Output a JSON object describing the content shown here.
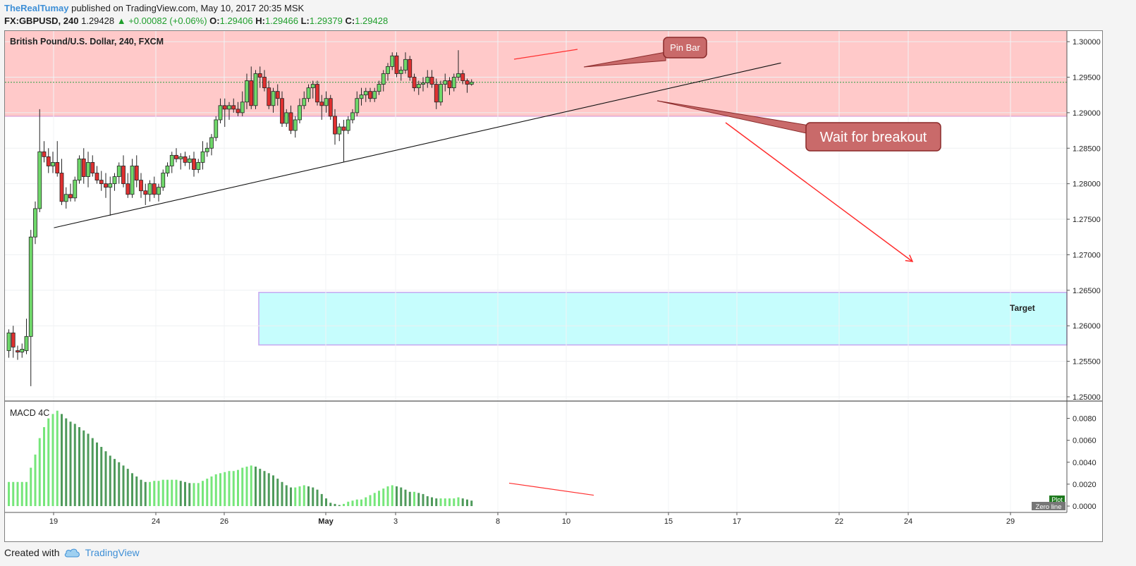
{
  "header": {
    "author": "TheRealTumay",
    "published": "published on TradingView.com, May 10, 2017 20:35 MSK"
  },
  "quote": {
    "symbol": "FX:GBPUSD, 240",
    "last": "1.29428",
    "change": "▲ +0.00082 (+0.06%)",
    "o_label": "O:",
    "o": "1.29406",
    "h_label": "H:",
    "h": "1.29466",
    "l_label": "L:",
    "l": "1.29379",
    "c_label": "C:",
    "c": "1.29428"
  },
  "footer": {
    "created": "Created with",
    "brand": "TradingView"
  },
  "colors": {
    "up": "#6fd86a",
    "down": "#e03030",
    "resistance_zone": "#ffc9c9",
    "target_zone": "#c6fdfd",
    "annotation": "#c96a6a",
    "macd_light": "#76e67a",
    "macd_dark": "#4f9a5b"
  },
  "chart_data": {
    "type": "candlestick",
    "title": "British Pound/U.S. Dollar, 240, FXCM",
    "y_ticks": [
      "1.30000",
      "1.29500",
      "1.29000",
      "1.28500",
      "1.28000",
      "1.27500",
      "1.27000",
      "1.26500",
      "1.26000",
      "1.25500",
      "1.25000"
    ],
    "ylim": [
      1.2495,
      1.3015
    ],
    "x_ticks": [
      "19",
      "24",
      "26",
      "May",
      "3",
      "8",
      "10",
      "15",
      "17",
      "22",
      "24",
      "29"
    ],
    "ohlc": [
      [
        1.2565,
        1.2595,
        1.2555,
        1.259
      ],
      [
        1.259,
        1.26,
        1.2555,
        1.257
      ],
      [
        1.2565,
        1.2572,
        1.2552,
        1.2563
      ],
      [
        1.2563,
        1.2575,
        1.2555,
        1.2567
      ],
      [
        1.2565,
        1.261,
        1.256,
        1.2585
      ],
      [
        1.2585,
        1.2735,
        1.2515,
        1.2725
      ],
      [
        1.2725,
        1.2775,
        1.2715,
        1.2765
      ],
      [
        1.2765,
        1.2905,
        1.276,
        1.2845
      ],
      [
        1.2845,
        1.286,
        1.283,
        1.2838
      ],
      [
        1.2838,
        1.285,
        1.2815,
        1.2825
      ],
      [
        1.2825,
        1.2845,
        1.2815,
        1.283
      ],
      [
        1.283,
        1.286,
        1.281,
        1.2815
      ],
      [
        1.2815,
        1.2835,
        1.277,
        1.2775
      ],
      [
        1.2775,
        1.2795,
        1.2765,
        1.2785
      ],
      [
        1.2785,
        1.28,
        1.2775,
        1.278
      ],
      [
        1.278,
        1.281,
        1.2775,
        1.2805
      ],
      [
        1.2805,
        1.284,
        1.28,
        1.2835
      ],
      [
        1.2835,
        1.285,
        1.28,
        1.281
      ],
      [
        1.281,
        1.2845,
        1.2795,
        1.283
      ],
      [
        1.283,
        1.284,
        1.281,
        1.2815
      ],
      [
        1.2815,
        1.2825,
        1.28,
        1.2805
      ],
      [
        1.2805,
        1.2818,
        1.279,
        1.28
      ],
      [
        1.28,
        1.2815,
        1.278,
        1.2795
      ],
      [
        1.2795,
        1.281,
        1.2755,
        1.28
      ],
      [
        1.28,
        1.2815,
        1.279,
        1.281
      ],
      [
        1.281,
        1.283,
        1.28,
        1.2825
      ],
      [
        1.2825,
        1.284,
        1.2795,
        1.28
      ],
      [
        1.28,
        1.2815,
        1.278,
        1.2785
      ],
      [
        1.2785,
        1.2835,
        1.278,
        1.2825
      ],
      [
        1.2825,
        1.284,
        1.2795,
        1.2805
      ],
      [
        1.2805,
        1.2815,
        1.278,
        1.279
      ],
      [
        1.279,
        1.28,
        1.277,
        1.2785
      ],
      [
        1.2785,
        1.2805,
        1.2775,
        1.28
      ],
      [
        1.28,
        1.281,
        1.278,
        1.2785
      ],
      [
        1.2785,
        1.28,
        1.2775,
        1.2795
      ],
      [
        1.2795,
        1.282,
        1.279,
        1.2815
      ],
      [
        1.2815,
        1.283,
        1.281,
        1.2825
      ],
      [
        1.2825,
        1.2845,
        1.2815,
        1.284
      ],
      [
        1.284,
        1.285,
        1.283,
        1.2835
      ],
      [
        1.2835,
        1.2843,
        1.282,
        1.2838
      ],
      [
        1.2838,
        1.2845,
        1.2825,
        1.283
      ],
      [
        1.283,
        1.284,
        1.282,
        1.2835
      ],
      [
        1.2835,
        1.2845,
        1.281,
        1.282
      ],
      [
        1.282,
        1.2835,
        1.2815,
        1.283
      ],
      [
        1.283,
        1.286,
        1.282,
        1.2845
      ],
      [
        1.2845,
        1.2858,
        1.2838,
        1.285
      ],
      [
        1.285,
        1.287,
        1.284,
        1.2865
      ],
      [
        1.2865,
        1.2895,
        1.286,
        1.289
      ],
      [
        1.289,
        1.292,
        1.2885,
        1.291
      ],
      [
        1.291,
        1.292,
        1.288,
        1.2905
      ],
      [
        1.2905,
        1.2915,
        1.289,
        1.291
      ],
      [
        1.291,
        1.292,
        1.29,
        1.2905
      ],
      [
        1.2905,
        1.2915,
        1.2895,
        1.29
      ],
      [
        1.29,
        1.293,
        1.2895,
        1.2915
      ],
      [
        1.2915,
        1.2955,
        1.2905,
        1.2945
      ],
      [
        1.2945,
        1.2965,
        1.2905,
        1.291
      ],
      [
        1.291,
        1.296,
        1.2905,
        1.2955
      ],
      [
        1.2955,
        1.2965,
        1.2935,
        1.295
      ],
      [
        1.295,
        1.296,
        1.293,
        1.2935
      ],
      [
        1.2935,
        1.2945,
        1.2905,
        1.291
      ],
      [
        1.291,
        1.2935,
        1.29,
        1.293
      ],
      [
        1.293,
        1.294,
        1.291,
        1.292
      ],
      [
        1.292,
        1.293,
        1.288,
        1.2885
      ],
      [
        1.2885,
        1.2905,
        1.288,
        1.29
      ],
      [
        1.29,
        1.291,
        1.287,
        1.2875
      ],
      [
        1.2875,
        1.2895,
        1.2865,
        1.289
      ],
      [
        1.289,
        1.292,
        1.2885,
        1.291
      ],
      [
        1.291,
        1.293,
        1.2905,
        1.292
      ],
      [
        1.292,
        1.294,
        1.2915,
        1.2935
      ],
      [
        1.2935,
        1.2945,
        1.292,
        1.294
      ],
      [
        1.294,
        1.2945,
        1.291,
        1.2915
      ],
      [
        1.2915,
        1.2925,
        1.289,
        1.291
      ],
      [
        1.291,
        1.293,
        1.29,
        1.292
      ],
      [
        1.292,
        1.2925,
        1.289,
        1.2895
      ],
      [
        1.2895,
        1.2905,
        1.2855,
        1.287
      ],
      [
        1.287,
        1.2885,
        1.286,
        1.288
      ],
      [
        1.288,
        1.289,
        1.283,
        1.2875
      ],
      [
        1.2875,
        1.2895,
        1.287,
        1.289
      ],
      [
        1.289,
        1.2905,
        1.2885,
        1.29
      ],
      [
        1.29,
        1.293,
        1.2895,
        1.292
      ],
      [
        1.292,
        1.2935,
        1.291,
        1.2925
      ],
      [
        1.2925,
        1.2935,
        1.2915,
        1.293
      ],
      [
        1.293,
        1.2935,
        1.2915,
        1.292
      ],
      [
        1.292,
        1.2935,
        1.2915,
        1.293
      ],
      [
        1.293,
        1.2945,
        1.2925,
        1.294
      ],
      [
        1.294,
        1.296,
        1.293,
        1.2955
      ],
      [
        1.2955,
        1.297,
        1.2945,
        1.2965
      ],
      [
        1.2965,
        1.2985,
        1.296,
        1.298
      ],
      [
        1.298,
        1.2985,
        1.295,
        1.2955
      ],
      [
        1.2955,
        1.2965,
        1.2945,
        1.296
      ],
      [
        1.296,
        1.2985,
        1.2955,
        1.2975
      ],
      [
        1.2975,
        1.298,
        1.2945,
        1.295
      ],
      [
        1.295,
        1.2955,
        1.293,
        1.2935
      ],
      [
        1.2935,
        1.2945,
        1.2925,
        1.294
      ],
      [
        1.294,
        1.295,
        1.293,
        1.2942
      ],
      [
        1.2942,
        1.296,
        1.2935,
        1.295
      ],
      [
        1.295,
        1.296,
        1.2935,
        1.294
      ],
      [
        1.294,
        1.2948,
        1.2905,
        1.2915
      ],
      [
        1.2915,
        1.2945,
        1.291,
        1.294
      ],
      [
        1.294,
        1.2955,
        1.293,
        1.2945
      ],
      [
        1.2945,
        1.295,
        1.2925,
        1.2935
      ],
      [
        1.2935,
        1.2955,
        1.293,
        1.295
      ],
      [
        1.295,
        1.2988,
        1.2945,
        1.2955
      ],
      [
        1.2955,
        1.296,
        1.294,
        1.2945
      ],
      [
        1.2945,
        1.2948,
        1.2928,
        1.294
      ],
      [
        1.294,
        1.2947,
        1.2938,
        1.2943
      ]
    ],
    "resistance_zone": [
      1.2895,
      1.3015
    ],
    "target_zone": {
      "label": "Target",
      "range": [
        1.2573,
        1.2647
      ]
    },
    "current_price_line": 1.29428,
    "trendline": {
      "from": [
        0,
        1.2738
      ],
      "to": [
        140,
        1.297
      ]
    },
    "forecast_arrow": {
      "from": [
        127,
        1.2885
      ],
      "to": [
        157,
        1.271
      ]
    },
    "annotations": [
      {
        "text": "Pin Bar",
        "at": [
          104,
          1.2965
        ]
      },
      {
        "text": "Wait for breakout",
        "at": [
          117,
          1.2915
        ]
      }
    ],
    "macd": {
      "name": "MACD 4C",
      "y_ticks": [
        "0.0080",
        "0.0060",
        "0.0040",
        "0.0020",
        "0.0000"
      ],
      "ylim": [
        0,
        0.009
      ],
      "values": [
        0.0022,
        0.0022,
        0.0022,
        0.0022,
        0.0022,
        0.0035,
        0.0047,
        0.0062,
        0.0072,
        0.008,
        0.0084,
        0.0087,
        0.0084,
        0.008,
        0.0077,
        0.0075,
        0.0072,
        0.0069,
        0.0066,
        0.0062,
        0.0058,
        0.0054,
        0.005,
        0.0046,
        0.0043,
        0.004,
        0.0037,
        0.0034,
        0.003,
        0.0027,
        0.0024,
        0.0022,
        0.0022,
        0.0023,
        0.0023,
        0.0024,
        0.0024,
        0.0024,
        0.0024,
        0.0023,
        0.0022,
        0.0021,
        0.0021,
        0.0021,
        0.0023,
        0.0025,
        0.0027,
        0.0029,
        0.003,
        0.0031,
        0.0032,
        0.0032,
        0.0033,
        0.0035,
        0.0036,
        0.0037,
        0.0036,
        0.0034,
        0.0032,
        0.003,
        0.0028,
        0.0025,
        0.0022,
        0.0019,
        0.0017,
        0.0017,
        0.0018,
        0.0019,
        0.0018,
        0.0017,
        0.0015,
        0.0011,
        0.0007,
        0.0003,
        0.0002,
        0.0001,
        0.0002,
        0.0004,
        0.0005,
        0.0006,
        0.0006,
        0.0008,
        0.001,
        0.0012,
        0.0014,
        0.0016,
        0.0018,
        0.0019,
        0.0018,
        0.0017,
        0.0015,
        0.0013,
        0.0013,
        0.0012,
        0.0011,
        0.0009,
        0.0008,
        0.0007,
        0.0007,
        0.0007,
        0.0007,
        0.0007,
        0.0008,
        0.0007,
        0.0006,
        0.0005
      ],
      "plot_badge": "Plot",
      "zero_badge": "Zero line"
    }
  }
}
